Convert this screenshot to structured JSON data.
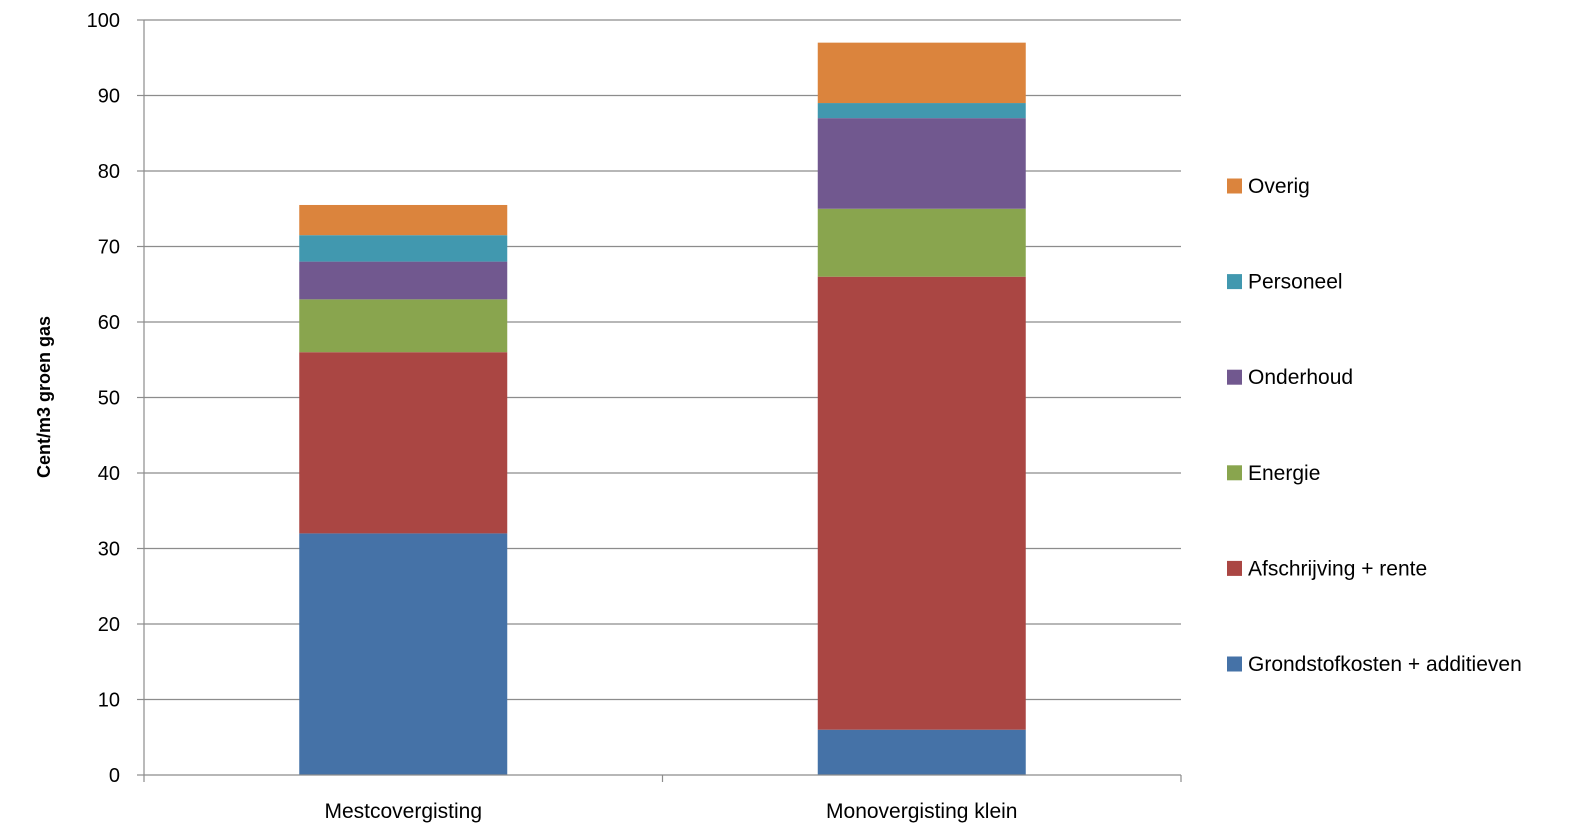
{
  "chart_data": {
    "type": "bar",
    "stacked": true,
    "ylabel": "Cent/m3 groen gas",
    "xlabel": "",
    "ylim": [
      0,
      100
    ],
    "yticks": [
      0,
      10,
      20,
      30,
      40,
      50,
      60,
      70,
      80,
      90,
      100
    ],
    "grid": true,
    "legend_position": "right",
    "categories": [
      "Mestcovergisting",
      "Monovergisting klein"
    ],
    "series": [
      {
        "name": "Grondstofkosten + additieven",
        "color": "#4572A7",
        "values": [
          32,
          6
        ]
      },
      {
        "name": "Afschrijving + rente",
        "color": "#AA4643",
        "values": [
          24,
          60
        ]
      },
      {
        "name": "Energie",
        "color": "#89A54E",
        "values": [
          7,
          9
        ]
      },
      {
        "name": "Onderhoud",
        "color": "#71588F",
        "values": [
          5,
          12
        ]
      },
      {
        "name": "Personeel",
        "color": "#4198AF",
        "values": [
          3.5,
          2
        ]
      },
      {
        "name": "Overig",
        "color": "#DB843D",
        "values": [
          4,
          8
        ]
      }
    ]
  }
}
